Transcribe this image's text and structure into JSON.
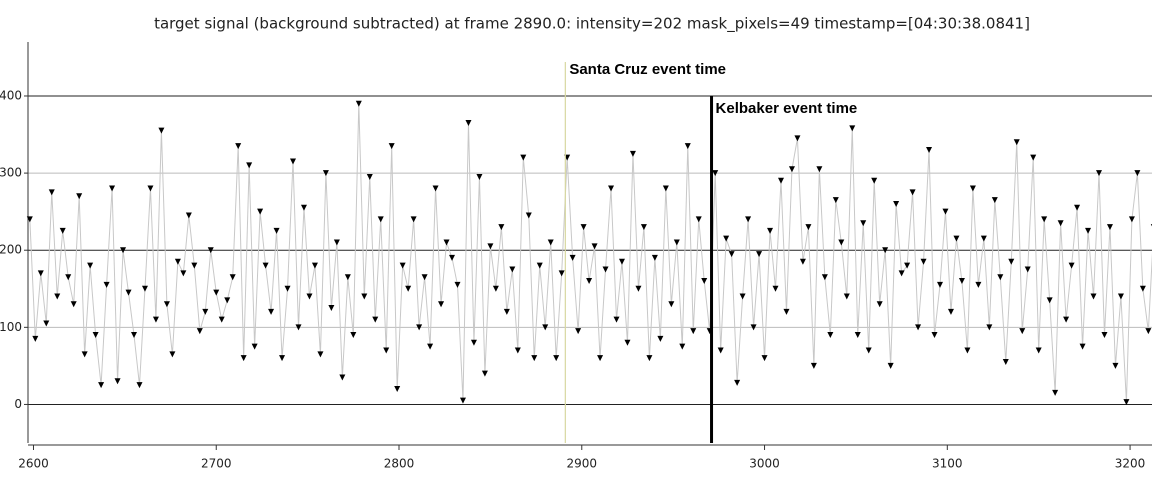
{
  "chart_data": {
    "type": "line",
    "title": "target signal (background subtracted) at frame 2890.0: intensity=202 mask_pixels=49 timestamp=[04:30:38.0841]",
    "x": [
      2598,
      2601,
      2604,
      2607,
      2610,
      2613,
      2616,
      2619,
      2622,
      2625,
      2628,
      2631,
      2634,
      2637,
      2640,
      2643,
      2646,
      2649,
      2652,
      2655,
      2658,
      2661,
      2664,
      2667,
      2670,
      2673,
      2676,
      2679,
      2682,
      2685,
      2688,
      2691,
      2694,
      2697,
      2700,
      2703,
      2706,
      2709,
      2712,
      2715,
      2718,
      2721,
      2724,
      2727,
      2730,
      2733,
      2736,
      2739,
      2742,
      2745,
      2748,
      2751,
      2754,
      2757,
      2760,
      2763,
      2766,
      2769,
      2772,
      2775,
      2778,
      2781,
      2784,
      2787,
      2790,
      2793,
      2796,
      2799,
      2802,
      2805,
      2808,
      2811,
      2814,
      2817,
      2820,
      2823,
      2826,
      2829,
      2832,
      2835,
      2838,
      2841,
      2844,
      2847,
      2850,
      2853,
      2856,
      2859,
      2862,
      2865,
      2868,
      2871,
      2874,
      2877,
      2880,
      2883,
      2886,
      2889,
      2892,
      2895,
      2898,
      2901,
      2904,
      2907,
      2910,
      2913,
      2916,
      2919,
      2922,
      2925,
      2928,
      2931,
      2934,
      2937,
      2940,
      2943,
      2946,
      2949,
      2952,
      2955,
      2958,
      2961,
      2964,
      2967,
      2970,
      2973,
      2976,
      2979,
      2982,
      2985,
      2988,
      2991,
      2994,
      2997,
      3000,
      3003,
      3006,
      3009,
      3012,
      3015,
      3018,
      3021,
      3024,
      3027,
      3030,
      3033,
      3036,
      3039,
      3042,
      3045,
      3048,
      3051,
      3054,
      3057,
      3060,
      3063,
      3066,
      3069,
      3072,
      3075,
      3078,
      3081,
      3084,
      3087,
      3090,
      3093,
      3096,
      3099,
      3102,
      3105,
      3108,
      3111,
      3114,
      3117,
      3120,
      3123,
      3126,
      3129,
      3132,
      3135,
      3138,
      3141,
      3144,
      3147,
      3150,
      3153,
      3156,
      3159,
      3162,
      3165,
      3168,
      3171,
      3174,
      3177,
      3180,
      3183,
      3186,
      3189,
      3192,
      3195,
      3198,
      3201,
      3204,
      3207,
      3210,
      3213
    ],
    "series": [
      {
        "color": "#000000",
        "line_color": "#c8c8c8",
        "values": [
          240,
          85,
          170,
          105,
          275,
          140,
          225,
          165,
          130,
          270,
          65,
          180,
          90,
          25,
          155,
          280,
          30,
          200,
          145,
          90,
          25,
          150,
          280,
          110,
          355,
          130,
          65,
          185,
          170,
          245,
          180,
          95,
          120,
          200,
          145,
          110,
          135,
          165,
          335,
          60,
          310,
          75,
          250,
          180,
          120,
          225,
          60,
          150,
          315,
          100,
          255,
          140,
          180,
          65,
          300,
          125,
          210,
          35,
          165,
          90,
          390,
          140,
          295,
          110,
          240,
          70,
          335,
          20,
          180,
          150,
          240,
          100,
          165,
          75,
          280,
          130,
          210,
          190,
          155,
          5,
          365,
          80,
          295,
          40,
          205,
          150,
          230,
          120,
          175,
          70,
          320,
          245,
          60,
          180,
          100,
          210,
          60,
          170,
          320,
          190,
          95,
          230,
          160,
          205,
          60,
          175,
          280,
          110,
          185,
          80,
          325,
          150,
          230,
          60,
          190,
          85,
          280,
          130,
          210,
          75,
          335,
          95,
          240,
          160,
          95,
          300,
          70,
          215,
          195,
          28,
          140,
          240,
          100,
          195,
          60,
          225,
          150,
          290,
          120,
          305,
          345,
          185,
          230,
          50,
          305,
          165,
          90,
          265,
          210,
          140,
          358,
          90,
          235,
          70,
          290,
          130,
          200,
          50,
          260,
          170,
          180,
          275,
          100,
          185,
          330,
          90,
          155,
          250,
          120,
          215,
          160,
          70,
          280,
          155,
          215,
          100,
          265,
          165,
          55,
          185,
          340,
          95,
          175,
          320,
          70,
          240,
          135,
          15,
          235,
          110,
          180,
          255,
          75,
          225,
          140,
          300,
          90,
          230,
          50,
          140,
          3,
          240,
          300,
          150,
          95,
          230
        ]
      }
    ],
    "events": [
      {
        "label": "Santa Cruz event time",
        "x": 2891,
        "color": "#d8d8a0"
      },
      {
        "label": "Kelbaker event time",
        "x": 2971,
        "color": "#000000"
      }
    ],
    "xlim": [
      2597,
      3212
    ],
    "xticks": [
      2600,
      2700,
      2800,
      2900,
      3000,
      3100,
      3200
    ],
    "ylim": [
      -50,
      470
    ],
    "yticks": [
      0,
      100,
      200,
      300,
      400
    ],
    "grid": true
  }
}
